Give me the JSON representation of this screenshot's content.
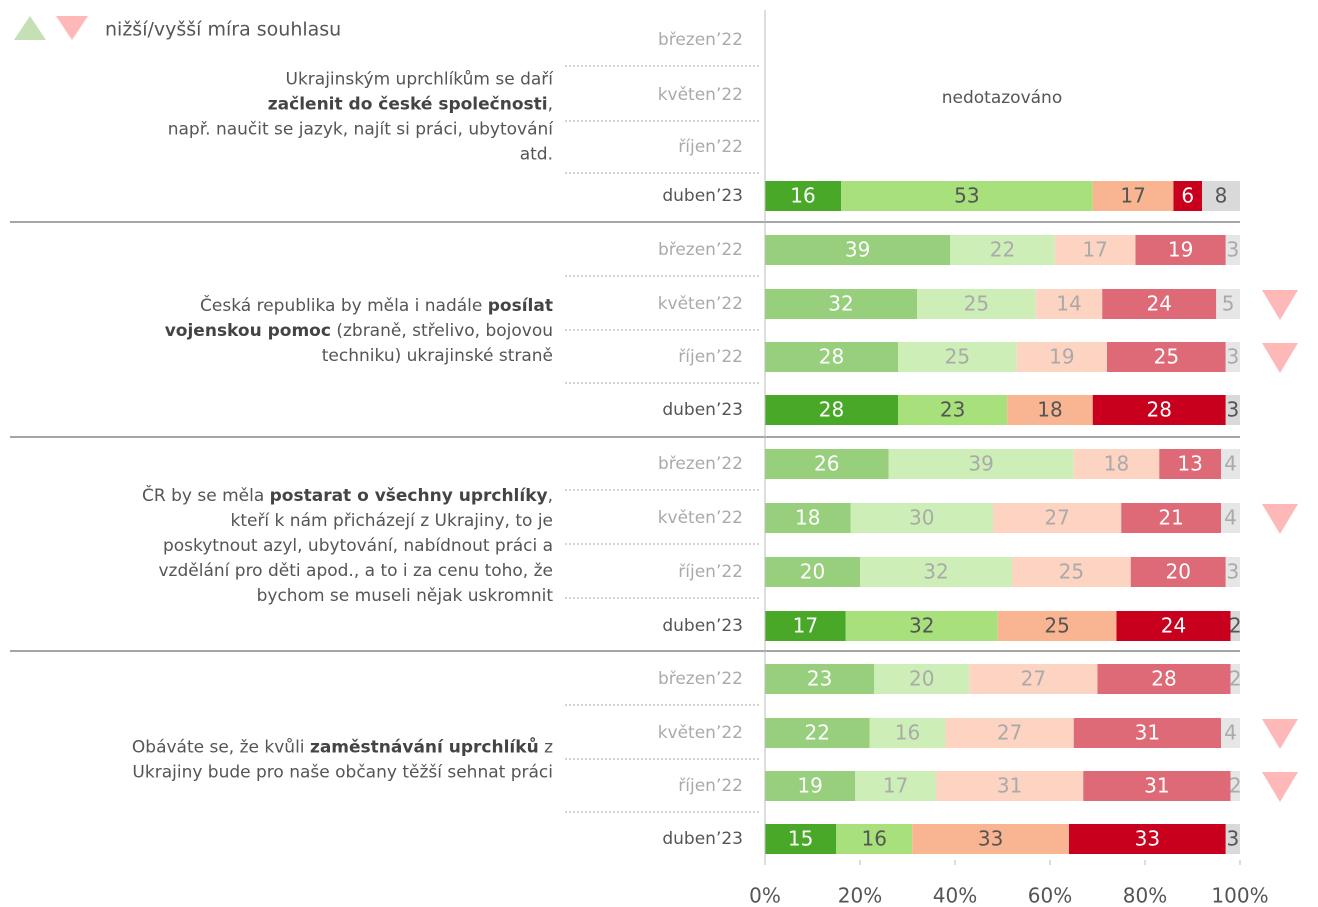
{
  "chart_data": {
    "type": "stacked-bar",
    "legend_label": "nižší/vyšší míra souhlasu",
    "xlim": [
      0,
      100
    ],
    "xticks": [
      {
        "value": 0,
        "label": "0%"
      },
      {
        "value": 20,
        "label": "20%"
      },
      {
        "value": 40,
        "label": "40%"
      },
      {
        "value": 60,
        "label": "60%"
      },
      {
        "value": 80,
        "label": "80%"
      },
      {
        "value": 100,
        "label": "100%"
      }
    ],
    "colors": {
      "current": [
        "#4aa829",
        "#a8e07c",
        "#f9b592",
        "#c8001e",
        "#d9d9d9"
      ],
      "past": [
        "#97cf7c",
        "#cdefb7",
        "#fdd3c2",
        "#df6a77",
        "#e6e6e6"
      ]
    },
    "marker_color": "#ffb8b8",
    "groups": [
      {
        "question": [
          [
            {
              "text": "Ukrajinským uprchlíkům se daří",
              "bold": false
            }
          ],
          [
            {
              "text": "začlenit do české společnosti",
              "bold": true
            },
            {
              "text": ",",
              "bold": false
            }
          ],
          [
            {
              "text": "např. naučit se jazyk, najít si práci, ubytování",
              "bold": false
            }
          ],
          [
            {
              "text": "atd.",
              "bold": false
            }
          ]
        ],
        "annotation": "nedotazováno",
        "rows": [
          {
            "period": "březen’22",
            "values": null
          },
          {
            "period": "květen’22",
            "values": null
          },
          {
            "period": "říjen’22",
            "values": null
          },
          {
            "period": "duben’23",
            "values": [
              16,
              53,
              17,
              6,
              8
            ],
            "current": true
          }
        ]
      },
      {
        "question": [
          [
            {
              "text": "Česká republika by měla i nadále ",
              "bold": false
            },
            {
              "text": "posílat",
              "bold": true
            }
          ],
          [
            {
              "text": "vojenskou pomoc",
              "bold": true
            },
            {
              "text": " (zbraně, střelivo, bojovou",
              "bold": false
            }
          ],
          [
            {
              "text": "techniku) ukrajinské straně",
              "bold": false
            }
          ]
        ],
        "rows": [
          {
            "period": "březen’22",
            "values": [
              39,
              22,
              17,
              19,
              3
            ]
          },
          {
            "period": "květen’22",
            "values": [
              32,
              25,
              14,
              24,
              5
            ],
            "marker": "down"
          },
          {
            "period": "říjen’22",
            "values": [
              28,
              25,
              19,
              25,
              3
            ],
            "marker": "down"
          },
          {
            "period": "duben’23",
            "values": [
              28,
              23,
              18,
              28,
              3
            ],
            "current": true
          }
        ]
      },
      {
        "question": [
          [
            {
              "text": "ČR by se měla ",
              "bold": false
            },
            {
              "text": "postarat o všechny uprchlíky",
              "bold": true
            },
            {
              "text": ",",
              "bold": false
            }
          ],
          [
            {
              "text": "kteří k nám přicházejí z Ukrajiny, to je",
              "bold": false
            }
          ],
          [
            {
              "text": "poskytnout azyl, ubytování, nabídnout práci a",
              "bold": false
            }
          ],
          [
            {
              "text": "vzdělání pro děti apod., a to i za cenu toho, že",
              "bold": false
            }
          ],
          [
            {
              "text": "bychom se museli nějak uskromnit",
              "bold": false
            }
          ]
        ],
        "rows": [
          {
            "period": "březen’22",
            "values": [
              26,
              39,
              18,
              13,
              4
            ]
          },
          {
            "period": "květen’22",
            "values": [
              18,
              30,
              27,
              21,
              4
            ],
            "marker": "down"
          },
          {
            "period": "říjen’22",
            "values": [
              20,
              32,
              25,
              20,
              3
            ]
          },
          {
            "period": "duben’23",
            "values": [
              17,
              32,
              25,
              24,
              2
            ],
            "current": true
          }
        ]
      },
      {
        "question": [
          [
            {
              "text": "Obáváte se, že kvůli ",
              "bold": false
            },
            {
              "text": "zaměstnávání uprchlíků",
              "bold": true
            },
            {
              "text": " z",
              "bold": false
            }
          ],
          [
            {
              "text": "Ukrajiny bude pro naše občany těžší sehnat práci",
              "bold": false
            }
          ]
        ],
        "rows": [
          {
            "period": "březen’22",
            "values": [
              23,
              20,
              27,
              28,
              2
            ]
          },
          {
            "period": "květen’22",
            "values": [
              22,
              16,
              27,
              31,
              4
            ],
            "marker": "down"
          },
          {
            "period": "říjen’22",
            "values": [
              19,
              17,
              31,
              31,
              2
            ],
            "marker": "down"
          },
          {
            "period": "duben’23",
            "values": [
              15,
              16,
              33,
              33,
              3
            ],
            "current": true
          }
        ]
      }
    ]
  }
}
